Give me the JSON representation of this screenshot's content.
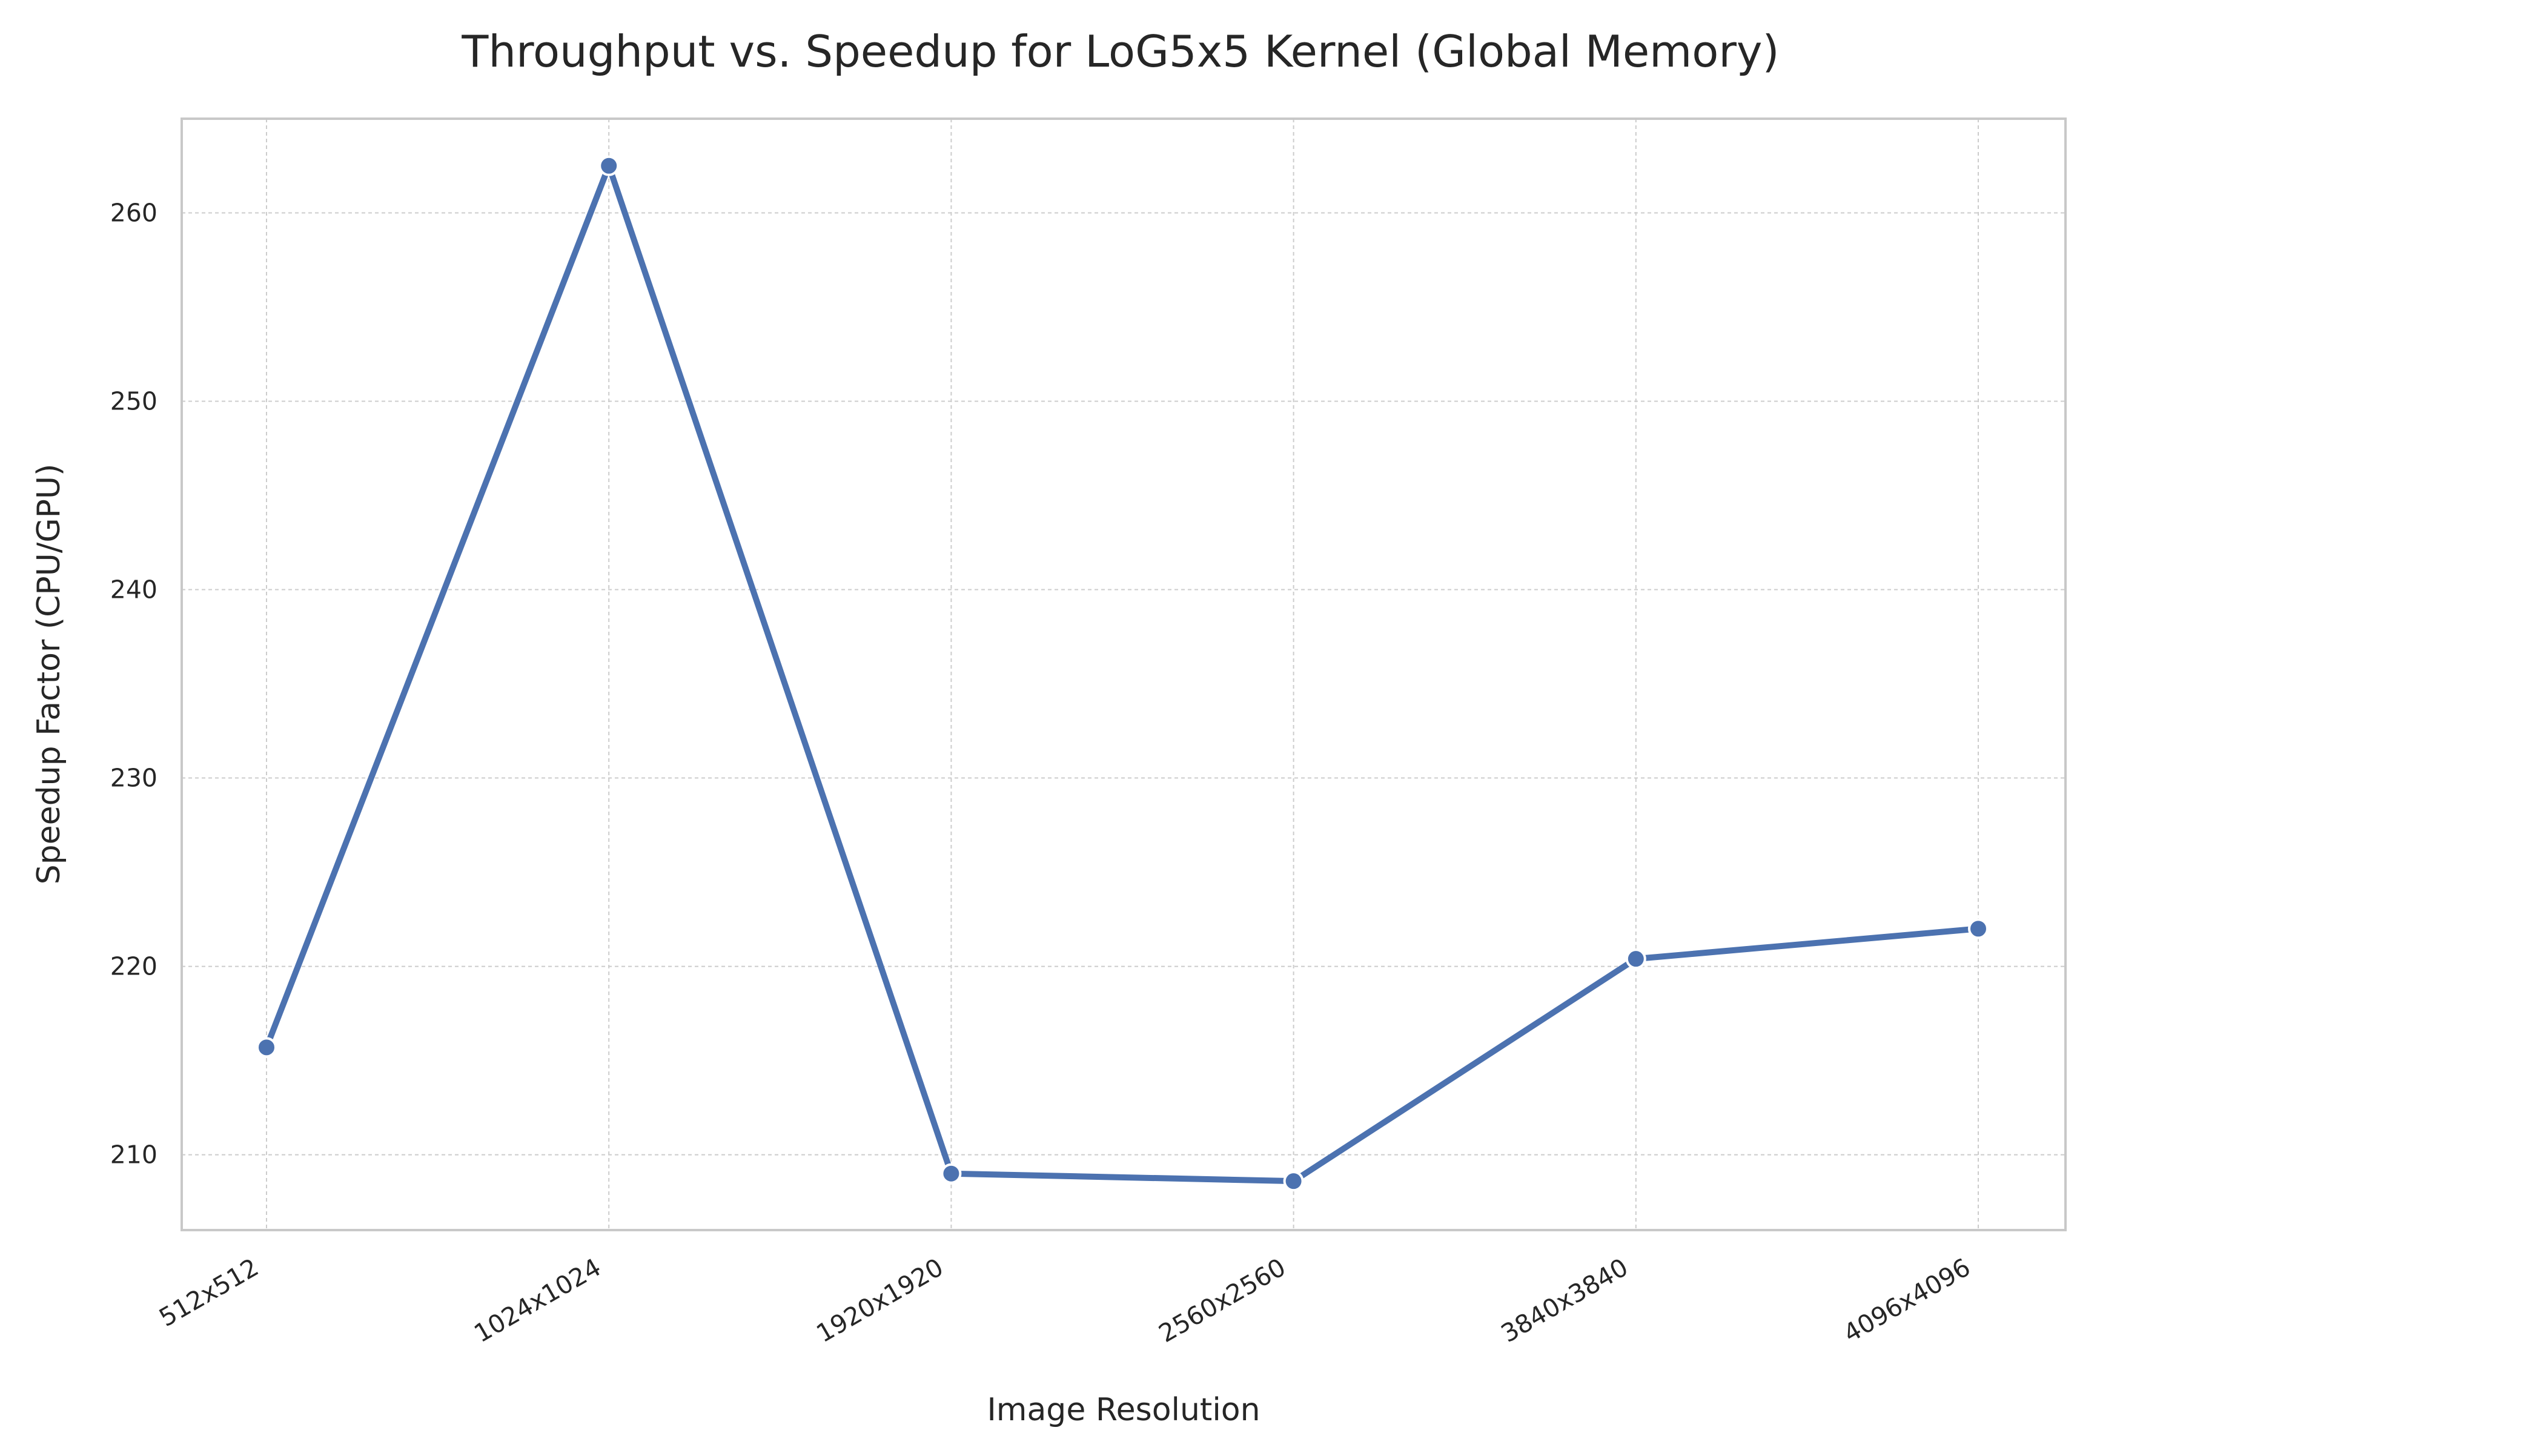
{
  "chart_data": {
    "type": "line",
    "title": "Throughput vs. Speedup for LoG5x5 Kernel (Global Memory)",
    "xlabel": "Image Resolution",
    "ylabel": "Speedup Factor (CPU/GPU)",
    "categories": [
      "512x512",
      "1024x1024",
      "1920x1920",
      "2560x2560",
      "3840x3840",
      "4096x4096"
    ],
    "series": [
      {
        "values": [
          215.7,
          262.5,
          209.0,
          208.6,
          220.4,
          222.0
        ],
        "color": "#4c72b0"
      }
    ],
    "ylim": [
      206,
      265
    ],
    "yticks": [
      210,
      220,
      230,
      240,
      250,
      260
    ],
    "grid": true,
    "marker": "circle"
  }
}
